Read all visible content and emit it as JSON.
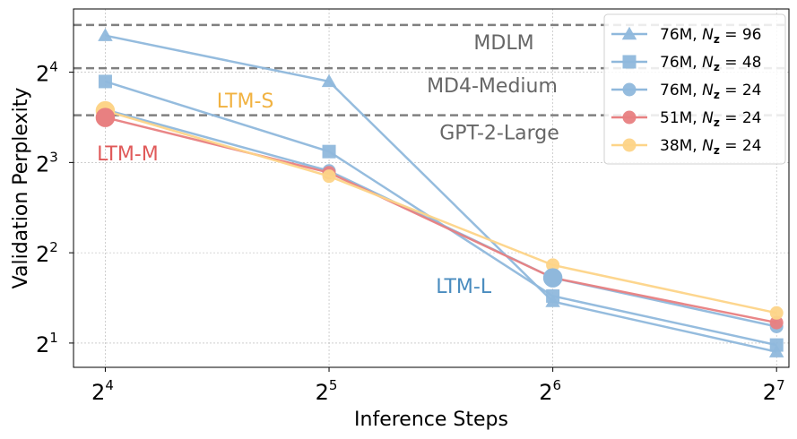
{
  "chart_data": {
    "type": "line",
    "xlabel": "Inference Steps",
    "ylabel": "Validation Perplexity",
    "x_scale": "log2",
    "y_scale": "log2",
    "x": [
      16,
      32,
      64,
      128
    ],
    "x_ticks": [
      {
        "base": "2",
        "exp": "4"
      },
      {
        "base": "2",
        "exp": "5"
      },
      {
        "base": "2",
        "exp": "6"
      },
      {
        "base": "2",
        "exp": "7"
      }
    ],
    "y_ticks": [
      {
        "value": 2,
        "base": "2",
        "exp": "1"
      },
      {
        "value": 4,
        "base": "2",
        "exp": "2"
      },
      {
        "value": 8,
        "base": "2",
        "exp": "3"
      },
      {
        "value": 16,
        "base": "2",
        "exp": "4"
      }
    ],
    "xlim": [
      14.5,
      133
    ],
    "ylim": [
      1.66,
      26
    ],
    "grid": true,
    "legend_position": "top-right",
    "series": [
      {
        "name_prefix": "76M, ",
        "name_math": "N",
        "name_sub": "z",
        "name_suffix": " = 96",
        "marker": "triangle",
        "color": "#8fb8dc",
        "values": [
          21.2,
          14.9,
          2.75,
          1.87
        ]
      },
      {
        "name_prefix": "76M, ",
        "name_math": "N",
        "name_sub": "z",
        "name_suffix": " = 48",
        "marker": "square",
        "color": "#8fb8dc",
        "values": [
          14.9,
          8.7,
          2.87,
          1.97
        ]
      },
      {
        "name_prefix": "76M, ",
        "name_math": "N",
        "name_sub": "z",
        "name_suffix": " = 24",
        "marker": "circle",
        "color": "#8fb8dc",
        "values": [
          12.0,
          7.5,
          3.3,
          2.27
        ]
      },
      {
        "name_prefix": "51M, ",
        "name_math": "N",
        "name_sub": "z",
        "name_suffix": " = 24",
        "marker": "circle",
        "color": "#e88081",
        "values": [
          11.3,
          7.4,
          3.3,
          2.34
        ]
      },
      {
        "name_prefix": "38M, ",
        "name_math": "N",
        "name_sub": "z",
        "name_suffix": " = 24",
        "marker": "circle",
        "color": "#fdd488",
        "values": [
          11.9,
          7.2,
          3.64,
          2.52
        ]
      }
    ],
    "reference_lines": [
      {
        "label": "MDLM",
        "value": 23.0
      },
      {
        "label": "MD4-Medium",
        "value": 16.5
      },
      {
        "label": "GPT-2-Large",
        "value": 11.5
      }
    ],
    "reference_color": "#808080",
    "reference_label_color": "#666666",
    "annotations": [
      {
        "label": "LTM-S",
        "color": "#f1b241",
        "x": 22.6,
        "y": 12.9
      },
      {
        "label": "LTM-M",
        "color": "#e05a5a",
        "x": 16,
        "y": 8.6
      },
      {
        "label": "LTM-L",
        "color": "#4a8cbf",
        "x": 45.3,
        "y": 3.1
      }
    ],
    "highlight_points": [
      {
        "x": 16,
        "y": 11.9,
        "color": "#fdd488"
      },
      {
        "x": 16,
        "y": 11.3,
        "color": "#e88081"
      },
      {
        "x": 64,
        "y": 3.3,
        "color": "#8fb8dc"
      }
    ]
  }
}
